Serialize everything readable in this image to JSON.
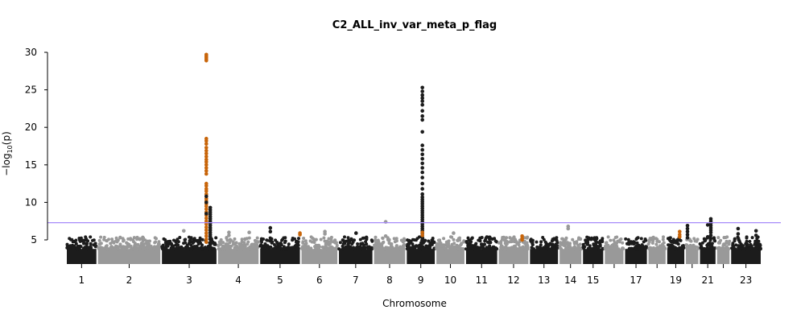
{
  "chart_data": {
    "type": "scatter",
    "title": "C2_ALL_inv_var_meta_p_flag",
    "xlabel": "Chromosome",
    "ylabel_main": "−log",
    "ylabel_sub": "10",
    "ylabel_tail": "(p)",
    "ylim": [
      2,
      30.5
    ],
    "yticks": [
      5,
      10,
      15,
      20,
      25,
      30
    ],
    "significance_threshold": 7.3,
    "colors": {
      "odd": "#1c1c1c",
      "even": "#999999",
      "flag": "#c8650a",
      "threshold": "#a78bfa"
    },
    "chromosomes": [
      {
        "label": "1",
        "start": 0,
        "end": 40
      },
      {
        "label": "2",
        "start": 40,
        "end": 122
      },
      {
        "label": "3",
        "start": 122,
        "end": 194
      },
      {
        "label": "4",
        "start": 194,
        "end": 248
      },
      {
        "label": "5",
        "start": 248,
        "end": 301
      },
      {
        "label": "6",
        "start": 301,
        "end": 349
      },
      {
        "label": "7",
        "start": 349,
        "end": 394
      },
      {
        "label": "8",
        "start": 394,
        "end": 436
      },
      {
        "label": "9",
        "start": 436,
        "end": 474
      },
      {
        "label": "10",
        "start": 474,
        "end": 512
      },
      {
        "label": "11",
        "start": 512,
        "end": 554
      },
      {
        "label": "12",
        "start": 554,
        "end": 594
      },
      {
        "label": "13",
        "start": 594,
        "end": 632
      },
      {
        "label": "14",
        "start": 632,
        "end": 662
      },
      {
        "label": "15",
        "start": 662,
        "end": 690
      },
      {
        "label": "",
        "start": 690,
        "end": 716
      },
      {
        "label": "17",
        "start": 716,
        "end": 746
      },
      {
        "label": "",
        "start": 746,
        "end": 770
      },
      {
        "label": "19",
        "start": 770,
        "end": 794
      },
      {
        "label": "",
        "start": 794,
        "end": 812
      },
      {
        "label": "21",
        "start": 812,
        "end": 834
      },
      {
        "label": "",
        "start": 834,
        "end": 852
      },
      {
        "label": "23",
        "start": 852,
        "end": 892
      }
    ],
    "peaks": [
      {
        "x": 180,
        "color": "flag",
        "y": [
          29.7,
          29.5,
          29.3,
          29.1,
          28.9,
          18.5,
          18.2,
          17.8,
          17.3,
          16.9,
          16.5,
          16.1,
          15.7,
          15.4,
          15.0,
          14.6,
          14.2,
          13.8,
          12.5,
          12.2,
          11.8,
          11.5,
          11.1,
          10.5,
          10.2,
          9.8,
          9.5,
          9.1,
          8.7,
          8.3,
          7.9,
          7.5,
          7.1,
          6.7,
          6.3,
          5.9,
          5.5,
          5.1,
          4.7
        ]
      },
      {
        "x": 180,
        "color": "odd",
        "y": [
          10.8,
          10.0,
          8.5
        ]
      },
      {
        "x": 185,
        "color": "odd",
        "y": [
          9.3,
          9.0,
          8.7,
          8.4,
          8.1,
          7.8,
          7.5,
          7.2,
          6.9,
          6.6,
          6.3,
          6.0,
          5.7,
          5.4,
          5.1
        ]
      },
      {
        "x": 457,
        "color": "odd",
        "y": [
          25.3,
          24.8,
          24.3,
          23.9,
          23.5,
          23.0,
          22.2,
          21.5,
          21.0,
          19.4,
          17.6,
          17.0,
          16.4,
          15.8,
          15.2,
          14.6,
          14.0,
          13.3,
          12.5,
          11.8,
          11.1,
          10.7,
          10.4,
          10.1,
          9.8,
          9.5,
          9.2,
          8.9,
          8.6,
          8.3,
          8.0,
          7.7,
          7.4,
          7.1,
          6.8,
          6.5,
          6.2,
          5.9,
          5.6,
          5.3,
          5.0
        ]
      },
      {
        "x": 457,
        "color": "flag",
        "y": [
          6.0,
          5.6
        ]
      },
      {
        "x": 300,
        "color": "flag",
        "y": [
          5.9,
          5.7
        ]
      },
      {
        "x": 585,
        "color": "flag",
        "y": [
          5.5,
          5.2,
          5.0
        ]
      },
      {
        "x": 787,
        "color": "flag",
        "y": [
          6.1,
          5.7,
          5.4
        ]
      },
      {
        "x": 797,
        "color": "odd",
        "y": [
          6.9,
          6.5,
          6.1,
          5.7,
          5.3
        ]
      },
      {
        "x": 827,
        "color": "odd",
        "y": [
          7.8,
          7.5,
          7.2,
          6.9,
          6.6,
          6.3,
          6.0,
          5.6,
          5.2
        ]
      },
      {
        "x": 823,
        "color": "odd",
        "y": [
          7.0,
          5.4
        ]
      },
      {
        "x": 410,
        "color": "even",
        "y": [
          7.4,
          5.5
        ]
      },
      {
        "x": 644,
        "color": "even",
        "y": [
          6.8,
          6.5
        ]
      },
      {
        "x": 262,
        "color": "odd",
        "y": [
          6.6,
          6.1
        ]
      },
      {
        "x": 151,
        "color": "even",
        "y": [
          6.2
        ]
      },
      {
        "x": 209,
        "color": "even",
        "y": [
          6.0,
          5.6
        ]
      },
      {
        "x": 332,
        "color": "even",
        "y": [
          6.1,
          5.8
        ]
      },
      {
        "x": 235,
        "color": "even",
        "y": [
          6.0
        ]
      },
      {
        "x": 862,
        "color": "odd",
        "y": [
          6.5,
          5.8
        ]
      },
      {
        "x": 885,
        "color": "odd",
        "y": [
          6.2,
          5.6
        ]
      },
      {
        "x": 372,
        "color": "odd",
        "y": [
          5.9
        ]
      },
      {
        "x": 497,
        "color": "even",
        "y": [
          5.9
        ]
      }
    ]
  }
}
